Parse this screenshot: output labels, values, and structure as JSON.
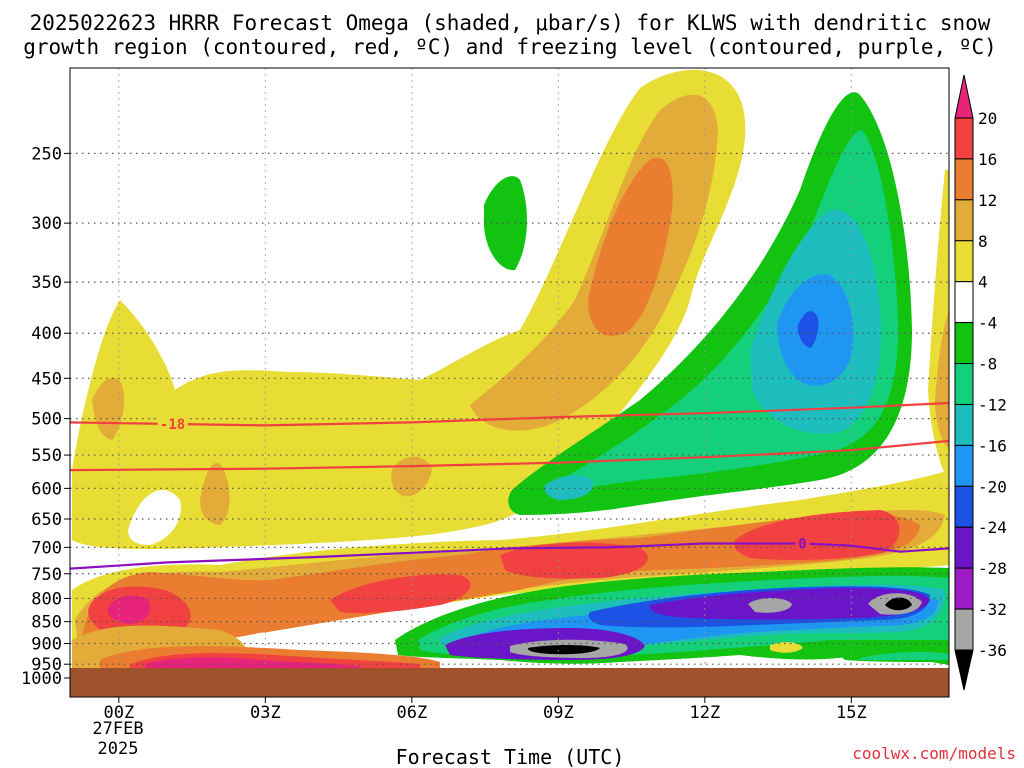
{
  "chart_data": {
    "type": "heatmap",
    "title_line1": "2025022623 HRRR Forecast Omega (shaded, μbar/s) for KLWS with dendritic snow",
    "title_line2": "growth region (contoured, red, ºC) and freezing level (contoured, purple, ºC)",
    "xlabel": "Forecast Time (UTC)",
    "ylabel": "",
    "x_ticks": [
      "00Z",
      "03Z",
      "06Z",
      "09Z",
      "12Z",
      "15Z"
    ],
    "x_tick_hours": [
      0,
      3,
      6,
      9,
      12,
      15
    ],
    "x_date_line1": "27FEB",
    "x_date_line2": "2025",
    "xlim_hours": [
      -1,
      17
    ],
    "y_ticks": [
      250,
      300,
      350,
      400,
      450,
      500,
      550,
      600,
      650,
      700,
      750,
      800,
      850,
      900,
      950,
      1000
    ],
    "ylim_hPa": [
      200,
      1035
    ],
    "y_scale": "log-pressure",
    "ground_level_hPa": 970,
    "colorbar": {
      "labels": [
        "20",
        "16",
        "12",
        "8",
        "4",
        "-4",
        "-8",
        "-12",
        "-16",
        "-20",
        "-24",
        "-28",
        "-32",
        "-36"
      ],
      "colors": [
        "#e8247a",
        "#f24141",
        "#ea7d2f",
        "#e3ab38",
        "#e8dd35",
        "#ffffff",
        "#12c312",
        "#14d07a",
        "#1ebdbd",
        "#1f96f2",
        "#1c52e6",
        "#6a16c8",
        "#9e1bc8",
        "#a6a6a6",
        "#000000"
      ]
    },
    "contours": {
      "dgz_minus18_label": "-18",
      "freezing_label": "0",
      "dgz_top_hPa": [
        {
          "x": -1,
          "p": 505
        },
        {
          "x": 3,
          "p": 509
        },
        {
          "x": 6,
          "p": 505
        },
        {
          "x": 9,
          "p": 498
        },
        {
          "x": 12,
          "p": 493
        },
        {
          "x": 15,
          "p": 486
        },
        {
          "x": 17,
          "p": 480
        }
      ],
      "dgz_bottom_hPa": [
        {
          "x": -1,
          "p": 572
        },
        {
          "x": 3,
          "p": 570
        },
        {
          "x": 6,
          "p": 566
        },
        {
          "x": 9,
          "p": 561
        },
        {
          "x": 12,
          "p": 553
        },
        {
          "x": 15,
          "p": 543
        },
        {
          "x": 17,
          "p": 530
        }
      ],
      "freezing_hPa": [
        {
          "x": -1,
          "p": 740
        },
        {
          "x": 1,
          "p": 728
        },
        {
          "x": 4,
          "p": 718
        },
        {
          "x": 6,
          "p": 710
        },
        {
          "x": 8,
          "p": 702
        },
        {
          "x": 10,
          "p": 700
        },
        {
          "x": 12,
          "p": 693
        },
        {
          "x": 14,
          "p": 693
        },
        {
          "x": 15,
          "p": 697
        },
        {
          "x": 16,
          "p": 708
        },
        {
          "x": 17,
          "p": 702
        }
      ]
    }
  },
  "credit": "coolwx.com/models"
}
